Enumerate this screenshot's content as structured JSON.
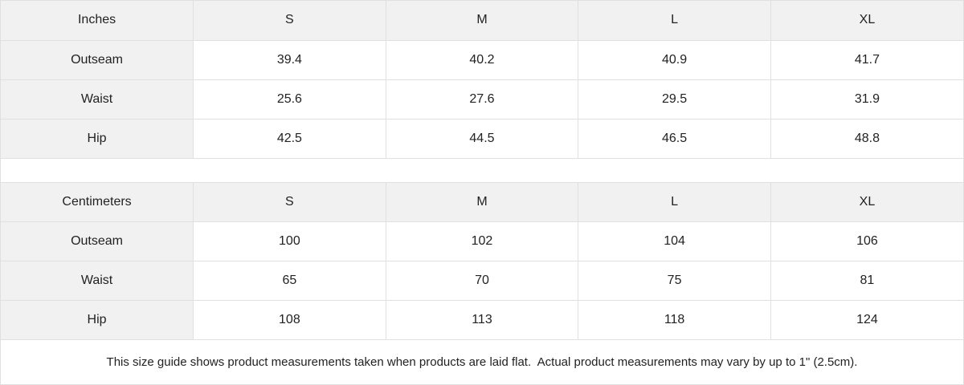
{
  "colors": {
    "header_bg": "#f1f1f1",
    "border": "#e0e0e0",
    "text": "#222222",
    "cell_bg": "#ffffff"
  },
  "tables": [
    {
      "unit_label": "Inches",
      "sizes": [
        "S",
        "M",
        "L",
        "XL"
      ],
      "rows": [
        {
          "label": "Outseam",
          "values": [
            "39.4",
            "40.2",
            "40.9",
            "41.7"
          ]
        },
        {
          "label": "Waist",
          "values": [
            "25.6",
            "27.6",
            "29.5",
            "31.9"
          ]
        },
        {
          "label": "Hip",
          "values": [
            "42.5",
            "44.5",
            "46.5",
            "48.8"
          ]
        }
      ]
    },
    {
      "unit_label": "Centimeters",
      "sizes": [
        "S",
        "M",
        "L",
        "XL"
      ],
      "rows": [
        {
          "label": "Outseam",
          "values": [
            "100",
            "102",
            "104",
            "106"
          ]
        },
        {
          "label": "Waist",
          "values": [
            "65",
            "70",
            "75",
            "81"
          ]
        },
        {
          "label": "Hip",
          "values": [
            "108",
            "113",
            "118",
            "124"
          ]
        }
      ]
    }
  ],
  "footer": {
    "note": "This size guide shows product measurements taken when products are laid flat.  Actual product measurements may vary by up to 1\" (2.5cm)."
  }
}
